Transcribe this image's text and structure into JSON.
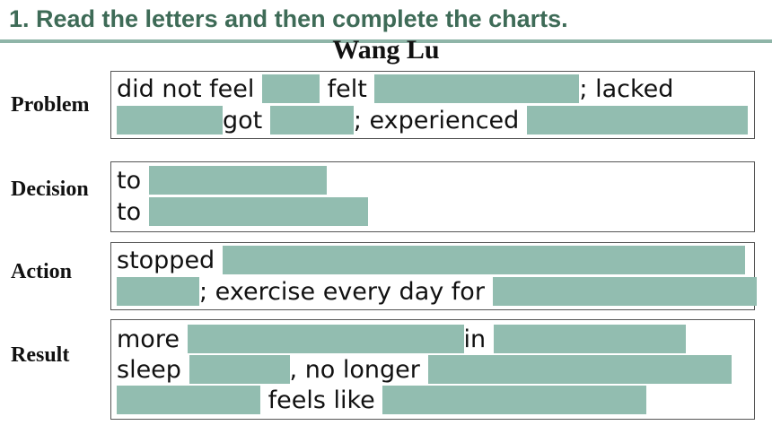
{
  "heading": "1. Read the letters and then complete the charts.",
  "subtitle": "Wang Lu",
  "colors": {
    "heading": "#3e6b57",
    "blank_fill": "#92bdb0",
    "rule": "#8fb5a8"
  },
  "rows": {
    "problem": {
      "label": "Problem",
      "t_did_not_feel": "did not feel",
      "t_felt": "felt",
      "t_lacked": "; lacked",
      "t_got": "got",
      "t_experienced": "; experienced"
    },
    "decision": {
      "label": "Decision",
      "t_to_1": "to",
      "t_to_2": "to"
    },
    "action": {
      "label": "Action",
      "t_stopped": "stopped",
      "t_exercise": "; exercise every day for"
    },
    "result": {
      "label": "Result",
      "t_more": "more",
      "t_in": "in",
      "t_sleep": "sleep",
      "t_no_longer": ", no longer",
      "t_feels_like": "feels like"
    }
  }
}
